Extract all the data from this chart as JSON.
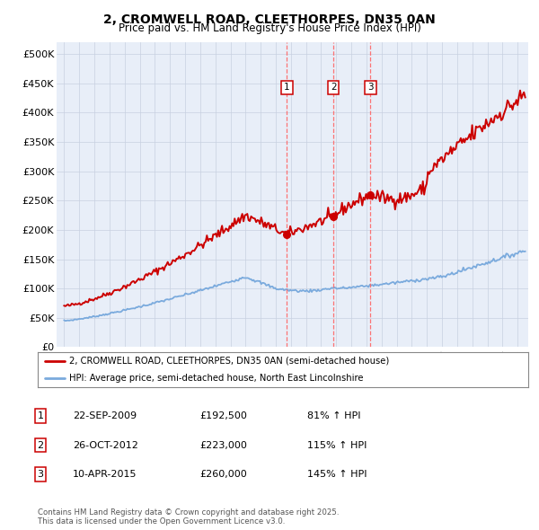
{
  "title": "2, CROMWELL ROAD, CLEETHORPES, DN35 0AN",
  "subtitle": "Price paid vs. HM Land Registry's House Price Index (HPI)",
  "red_label": "2, CROMWELL ROAD, CLEETHORPES, DN35 0AN (semi-detached house)",
  "blue_label": "HPI: Average price, semi-detached house, North East Lincolnshire",
  "footer": "Contains HM Land Registry data © Crown copyright and database right 2025.\nThis data is licensed under the Open Government Licence v3.0.",
  "transactions": [
    {
      "num": 1,
      "date": "22-SEP-2009",
      "price": "£192,500",
      "hpi": "81% ↑ HPI",
      "x_year": 2009.73
    },
    {
      "num": 2,
      "date": "26-OCT-2012",
      "price": "£223,000",
      "hpi": "115% ↑ HPI",
      "x_year": 2012.82
    },
    {
      "num": 3,
      "date": "10-APR-2015",
      "price": "£260,000",
      "hpi": "145% ↑ HPI",
      "x_year": 2015.27
    }
  ],
  "transaction_values": [
    192500,
    223000,
    260000
  ],
  "background_color": "#ffffff",
  "plot_bg": "#e8eef8",
  "grid_color": "#c8d0e0",
  "red_color": "#cc0000",
  "blue_color": "#7aaadd",
  "vline_color": "#ff6666",
  "ylim": [
    0,
    520000
  ],
  "yticks": [
    0,
    50000,
    100000,
    150000,
    200000,
    250000,
    300000,
    350000,
    400000,
    450000,
    500000
  ],
  "xlim_start": 1994.5,
  "xlim_end": 2025.7
}
